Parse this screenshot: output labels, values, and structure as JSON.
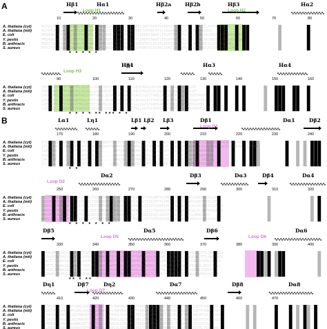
{
  "panels": [
    {
      "label": "A",
      "blocks": [
        {
          "top": 0,
          "species": [
            "A. thaliana (cyt)",
            "A. thaliana (mit)",
            "E. coli",
            "Y. pestis",
            "B. anthracis",
            "S. aureus"
          ],
          "positions": [
            "10",
            "20",
            "30",
            "40",
            "50",
            "60",
            "70",
            "80"
          ],
          "structure": [
            "Hβ1",
            "Hα1",
            "Hβ2a",
            "Hβ2b",
            "Hβ3",
            "Hα2"
          ],
          "loop": "Loop H1",
          "loop2": "Loop H2",
          "seq": [
            "MSTVRIAVVGSGNWGSAVAKIIAKNAEANGLKVSLWARDPNSIEKLSKEYGFKTKPNAVLVS.LEEALKDADLIILAVPSHAIRDV",
            "MSTVRVAIIGAGNWGTAIAKVVAENSRRLGLEVSLWGRDEGRIAEVTGHRRPATSLGAAVAGADLILIAVPSHAVRDL",
            "MNQRNASMTVIGAGSYGTALAITLARNG.HEVVLWGHDPEHIATLERDRCNAAFLPDVPFPDTLHLESDLATALAASRNILVVVPSHVFGEV",
            "MNQRNASMTVIGAGSYGTALAITLARNG.HEVVLWGHDPEHIATLQRDRCNAAFLPEVPFPDTLHLESDLAEALAASRNILVVVPSHVFGQV",
            "MKKITVLGAGSWGTALALVLADNN.HDVRIWGNRSELIDEINTKHENTRYLPGIPLPEKIKATTDLEEAVKGLDMVILVVPTKAIREL",
            "MTKITVFGMGSFGTALANVLAKNG.HEVLMWGKNQDAVDELNTCHTNKKYLKYAKLDVNIIATSDMTKAIQFDADIAIYVVPSTKAIRDV"
          ],
          "stars": "*  *  *        *     *"
        },
        {
          "top": 1,
          "species": [
            "A. thaliana (cyt)",
            "A. thaliana (mit)",
            "E. coli",
            "Y. pestis",
            "B. anthracis",
            "S. aureus"
          ],
          "positions": [
            "90",
            "100",
            "110",
            "120",
            "130",
            "140",
            "150",
            "160"
          ],
          "structure": [
            "Hβ4",
            "Hη1",
            "Hα3",
            "Hα4"
          ],
          "loop": "Loop H3",
          "loop2": "",
          "seq": [
            "VHGLPGYPGITFSGKTPLVGIRGLGDGYSEGFAALLGRSDVLPEIFRAGDIPLWVSGPS.RAAVSEEGLRT",
            "VHGLPGYPGITFSGKTPLVGIRGLGDGYSEGFAALLGRSDVLPEIFRAGDIPLWVSGPS.RAAVSEEGLRT",
            "LHGLKPVLRPGGRVIWATKGLEAETGRLLQDVAREALGDQIPLAVISGPTFAKELAAGLPTAISLASTDQTFADDLQQ",
            "LHGLKPVLRPGGRVIWATKGLEPDTGRLLQDVAREALGEQVPLAVISGPTFAKELAAGLPTAIALASTDVQFSEDLQQ",
            "LQEMKPFLKPTSKIIVTTKGIEIETGRLMSDVLREELEGMPYALLSGPSFAKEVAEGKPTAVVVASEEMSVAEEL",
            "LSEMKPLLSPNSKIIVTAKGIEPDTGRLISEVLREQLGEITPYALLSGPSFAKEVAEGQPTAIVLAGEDSEAVEKVM"
          ],
          "stars": "*   *    *  *  **    ***    *   *"
        }
      ]
    },
    {
      "label": "B",
      "blocks": [
        {
          "top": 2,
          "species": [
            "A. thaliana (cyt)",
            "A. thaliana (mit)",
            "E. coli",
            "Y. pestis",
            "B. anthracis",
            "S. aureus"
          ],
          "positions": [
            "170",
            "180",
            "190",
            "200",
            "210",
            "220",
            "230",
            "240"
          ],
          "structure": [
            "Lα1",
            "Lη1",
            "Lβ1",
            "Lβ2",
            "Lβ3",
            "Dβ1",
            "Dα1",
            "Dβ2"
          ],
          "loop": "Loop D1",
          "loop2": "",
          "seq": [
            "IFQAAEWLREDGKLFRVQVKTLSVCDHLWSHTRDSRFKYIVTVMGLNNTPDSFDGKLPSVDLPAVKLARAGVLVLSLGSAWKALRGRADFAHIGLENDK",
            "IFQAAEWLREDGKLFRVQVKTLSVCDHLWSHTRDSRFKYIVTVMGLNNTPDSFDGKLPSVDLPAVKLARAGVLVLSLGSAWKALRGRADFAHIGLENDK",
            "IGARLRQ......FKKVTQPDSLGVA.......GKHVAVIGAGNRGEAFSQRLLQEGYEVTLYDIDPAAVQRAAERVGL",
            "IGARLRQ......FKKVTQPDSLGVA.......GKHVAIIGAGNRGEAFSQRLLQEGYQVTLYDIDRTAVQAAAEQVGL",
            "VAKIFQE......LEKAQKPESLSIA.......GKKVALIGLGHMGSAIGLSLQHPEYEVRLFDIDPAKTEALVKELGL",
            "ICLEWL......FSRMQKPESLSIA.......GKKLTLIGAGGMGSAVAYSLANLQHEVTLFDINPEAVKRLEHELGG"
          ],
          "stars": "*                    *"
        },
        {
          "top": 3,
          "species": [
            "A. thaliana (cyt)",
            "A. thaliana (mit)",
            "E. coli",
            "Y. pestis",
            "B. anthracis",
            "S. aureus"
          ],
          "positions": [
            "250",
            "260",
            "270",
            "280",
            "290",
            "300",
            "310",
            "320"
          ],
          "structure": [
            "Dα2",
            "Dβ3",
            "Dα3",
            "Dβ4",
            "Dα4"
          ],
          "loop": "Loop D2",
          "loop2": "",
          "seq": [
            "SGSTRPAESAHPEHLLSKIRFDLTVKSAERPFSLDGTAMKNMLVFHSTVVGVNTPLPMDGSIKVIKEAFLKAEPVIDLDT",
            "SGSTRPAESAHPEHLLSKIRFDLTVKSAERPFSLDGTAMKNMLVFHSTVVGVNTPLPMDGSIKVIKEAFLKAEPVIDLDT",
            "SRNVGSPAEAVARA.DLIVTCLPEHVSMEAALTRQLIGTPVAENKWLIDVSTAAVRQSLGLAEQAQAAGGLPLDAPVGGGVGK",
            "SRNVGSPAEAVARA.DLIVTCLPEHVSMEAALTRQLIGTPVAENRWLIDISTAAVRQTMALAEQAQAAGGLPLDAPVGGGVGK",
            "HMRSPMEALEQA.DVIVTCLPGSEKVEEVLKHKLDAGESLVDLTSVGGRIKQEIGAKVAEHGGKLINVSLMHDLEGS",
            "NHRLAASLDEVLEN.ADIVITSLPEGKPGENRVKLLLSEGLFNKKILIDTSFEGHGSRKLVNEAAEKGKNALDVHVIGGVGD"
          ],
          "stars": "*  *      *      *     *  *      *"
        },
        {
          "top": 4,
          "species": [
            "A. thaliana (cyt)",
            "A. thaliana (mit)",
            "E. coli",
            "Y. pestis",
            "B. anthracis",
            "S. aureus"
          ],
          "positions": [
            "330",
            "340",
            "350",
            "360",
            "370",
            "380",
            "390",
            "400"
          ],
          "structure": [
            "Dβ5",
            "Dα5",
            "Dβ6",
            "Dα6"
          ],
          "loop": "Loop D5",
          "loop2": "Loop D6",
          "seq": [
            "ALAAGEMSIMVGGDKESFEKARPLLSAMKLSTGTGRDNRMVTPTNFDGGKRQCGHAVTQLGNAMCAVAGLALTETLAAETSEA",
            "ALAAGEMSIMVGGDKESFEKARPLLSAMKLSTGTGRDNRMVTPTNFDGGKRQCGHAVTQLGNAMCAVAGLALTETLAAETSEA",
            "AEKTTLTLAAGGEQSAFRAVSPLFELLGDNIWQTGTTAGSGQATKLNANNTIIGGAMAAVAETLALAKSSGLSPDMVLEVLQ",
            "AEKTTLTLAAGGEASAFETVRPLFELLGEQIWHTGTGLGSGQATKLNANNAIIGGAMAAVAETLALAQHCGLSLEKVLEVLS",
            "ALAGHLTFMAGGRPEVVEKVAPILQDLGKQIHYVDTGAGGQAAKLANNLLIGASTMLAEAVALFKAQGGDVNLVYEVIR",
            "AEAMKPLTLMLGGAEEAYQYVEPLFQKIGNPVLYMGPHGSGQATKLVNQLTVSAMVASFAEGALIAEHAGVDPMIVFEILT"
          ],
          "stars": "**                          *         **"
        },
        {
          "top": 5,
          "species": [
            "A. thaliana (cyt)",
            "A. thaliana (mit)",
            "E. coli",
            "Y. pestis",
            "B. anthracis",
            "S. aureus"
          ],
          "positions": [
            "410",
            "420",
            "430",
            "440",
            "450",
            "460",
            "470"
          ],
          "structure": [
            "Dη1",
            "Dβ7",
            "Dη2",
            "Dα7",
            "Dβ8",
            "Dα8"
          ],
          "loop": "Loop D7",
          "loop2": "",
          "seq": [
            "DAIRTAGGFGSRAAFGQRLRADRPSLEAEPHFLTWPMRPLLAYTVAELKSAGLTPLESFKDATAEEAVKSGEYFVHKTSLR",
            "DAIRTAGGFGSRAAFGQRLRADRPSLEAEPHFLTWPMRPLLAYTVAELKSAGLTPLESFKDATAEEAVKSGEYFVHKTSLR",
            "ECQAGSIFHAGKVLAEVMAGNYHDAGFTLRLMAKDLSLALAEARRYGVP.LPLLAETQQLMSQAYENGLGNLDFSAVLKVLE",
            "ECQAGSAFHVGKVLAEVMAGNYTNAGFTLRLMAKDLGLALAEARRLGTP.LPLLAETQRLMSQAYEAGLGNLDFSAVLKVLE",
            "DSMKNSPLLNQKLAAQWKGEFVNRFFLLGLAKDLGLLDNAAKEYGKDLPLLKAAADFYRMYIDQGHGHDDVSAIYQLSR",
            "DALKNSPFLAKKLDEEWQYQFHERFFLVGLVKDLALVDNLAEEVGVTIPLVKETQTVWKMFLEAGYDQRDITMLYEALAKK"
          ],
          "stars": "*        *                    *  *"
        }
      ]
    }
  ],
  "colors": {
    "identical": "#000000",
    "similar": "#7a7a7a",
    "loop_green": "#c9e9a6",
    "loop_pink": "#f1b9ee",
    "loop_label_green": "#7ac043",
    "loop_label_pink": "#d07ad6"
  }
}
